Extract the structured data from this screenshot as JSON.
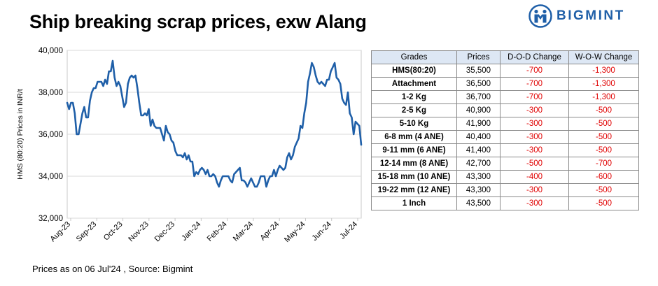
{
  "title": "Ship breaking scrap prices, exw Alang",
  "brand": {
    "name": "BIGMINT",
    "color": "#1f5fa8"
  },
  "footer": "Prices as on 06 Jul'24 , Source: Bigmint",
  "chart_data": {
    "type": "line",
    "title": "Ship breaking scrap prices, exw Alang",
    "xlabel": "",
    "ylabel": "HMS (80:20) Prices in INR/t",
    "ylim": [
      32000,
      40000
    ],
    "yticks": [
      "32,000",
      "34,000",
      "36,000",
      "38,000",
      "40,000"
    ],
    "xticks": [
      "Aug-23",
      "Sep-23",
      "Oct-23",
      "Nov-23",
      "Dec-23",
      "Jan-24",
      "Feb-24",
      "Mar-24",
      "Apr-24",
      "May-24",
      "Jun-24",
      "Jul-24"
    ],
    "grid": true,
    "color": "#1f5fa8",
    "series": [
      {
        "values": [
          37500,
          37200,
          37500,
          37500,
          37000,
          36000,
          36000,
          36500,
          37000,
          37300,
          36800,
          36800,
          37600,
          38000,
          38200,
          38200,
          38500,
          38500,
          38500,
          38300,
          38600,
          38400,
          39000,
          39000,
          39500,
          38700,
          38300,
          38500,
          38300,
          37800,
          37300,
          37500,
          38400,
          38700,
          38800,
          38700,
          38800,
          38200,
          37500,
          36900,
          36900,
          37000,
          36900,
          37200,
          36400,
          36700,
          36400,
          36300,
          36300,
          36300,
          36000,
          35700,
          36400,
          36100,
          36000,
          35700,
          35600,
          35200,
          35000,
          35000,
          35000,
          34900,
          35100,
          34800,
          35000,
          34700,
          34700,
          34000,
          34200,
          34100,
          34300,
          34400,
          34300,
          34100,
          34300,
          34000,
          34000,
          34100,
          34000,
          33700,
          33500,
          33800,
          34000,
          34000,
          34000,
          34000,
          33800,
          33700,
          34100,
          34200,
          34300,
          34400,
          33800,
          33800,
          33700,
          33500,
          33700,
          33900,
          33700,
          33500,
          33500,
          33700,
          34000,
          34000,
          34000,
          33500,
          33800,
          34000,
          34000,
          34300,
          34000,
          34300,
          34500,
          34400,
          34300,
          34400,
          34900,
          35100,
          34800,
          35000,
          35400,
          35600,
          35800,
          36400,
          36300,
          37000,
          37500,
          38500,
          38900,
          39400,
          39200,
          38800,
          38500,
          38400,
          38500,
          38400,
          38300,
          38600,
          38600,
          39000,
          39200,
          39400,
          38700,
          38600,
          38400,
          37700,
          37500,
          37400,
          38000,
          37000,
          36800,
          36000,
          36600,
          36500,
          36400,
          35500
        ]
      }
    ]
  },
  "table": {
    "headers": [
      "Grades",
      "Prices",
      "D-O-D Change",
      "W-O-W Change"
    ],
    "rows": [
      [
        "HMS(80:20)",
        "35,500",
        "-700",
        "-1,300"
      ],
      [
        "Attachment",
        "36,500",
        "-700",
        "-1,300"
      ],
      [
        "1-2 Kg",
        "36,700",
        "-700",
        "-1,300"
      ],
      [
        "2-5 Kg",
        "40,900",
        "-300",
        "-500"
      ],
      [
        "5-10 Kg",
        "41,900",
        "-300",
        "-500"
      ],
      [
        "6-8 mm (4 ANE)",
        "40,400",
        "-300",
        "-500"
      ],
      [
        "9-11 mm (6 ANE)",
        "41,400",
        "-300",
        "-500"
      ],
      [
        "12-14 mm (8 ANE)",
        "42,700",
        "-500",
        "-700"
      ],
      [
        "15-18 mm (10 ANE)",
        "43,300",
        "-400",
        "-600"
      ],
      [
        "19-22 mm (12 ANE)",
        "43,300",
        "-300",
        "-500"
      ],
      [
        "1 Inch",
        "43,500",
        "-300",
        "-500"
      ]
    ]
  }
}
